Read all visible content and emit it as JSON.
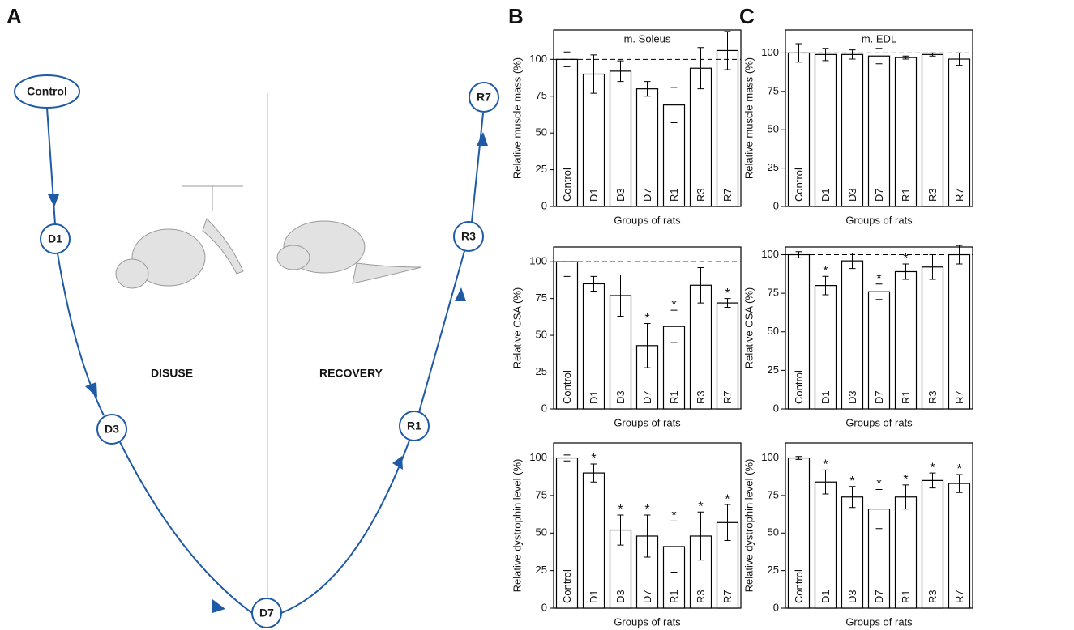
{
  "panel_labels": [
    "A",
    "B",
    "C"
  ],
  "diagram": {
    "nodes": [
      {
        "label": "Control"
      },
      {
        "label": "D1"
      },
      {
        "label": "D3"
      },
      {
        "label": "D7"
      },
      {
        "label": "R1"
      },
      {
        "label": "R3"
      },
      {
        "label": "R7"
      }
    ],
    "phases": [
      "DISUSE",
      "RECOVERY"
    ]
  },
  "chart_data": [
    {
      "type": "bar",
      "title": "m. Soleus",
      "ylabel": "Relative muscle mass (%)",
      "xlabel": "Groups of rats",
      "categories": [
        "Control",
        "D1",
        "D3",
        "D7",
        "R1",
        "R3",
        "R7"
      ],
      "values": [
        100,
        90,
        92,
        80,
        69,
        94,
        106
      ],
      "errors": [
        5,
        13,
        7,
        5,
        12,
        14,
        13
      ],
      "significance": [
        null,
        null,
        null,
        null,
        null,
        null,
        null
      ],
      "reference_line": 100,
      "color": "#ffffff",
      "ylim": [
        0,
        120
      ],
      "yticks": [
        0,
        25,
        50,
        75,
        100
      ]
    },
    {
      "type": "bar",
      "ylabel": "Relative CSA (%)",
      "xlabel": "Groups of rats",
      "categories": [
        "Control",
        "D1",
        "D3",
        "D7",
        "R1",
        "R3",
        "R7"
      ],
      "values": [
        100,
        85,
        77,
        43,
        56,
        84,
        72
      ],
      "errors": [
        10,
        5,
        14,
        15,
        11,
        12,
        3
      ],
      "significance": [
        null,
        null,
        null,
        "*",
        "*",
        null,
        "*"
      ],
      "reference_line": 100,
      "color": "#ffffff",
      "ylim": [
        0,
        110
      ],
      "yticks": [
        0,
        25,
        50,
        75,
        100
      ]
    },
    {
      "type": "bar",
      "ylabel": "Relative dystrophin level (%)",
      "xlabel": "Groups of rats",
      "categories": [
        "Control",
        "D1",
        "D3",
        "D7",
        "R1",
        "R3",
        "R7"
      ],
      "values": [
        100,
        90,
        52,
        48,
        41,
        48,
        57
      ],
      "errors": [
        2,
        6,
        10,
        14,
        17,
        16,
        12
      ],
      "significance": [
        null,
        "*",
        "*",
        "*",
        "*",
        "*",
        "*"
      ],
      "reference_line": 100,
      "color": "#ffffff",
      "ylim": [
        0,
        110
      ],
      "yticks": [
        0,
        25,
        50,
        75,
        100
      ]
    },
    {
      "type": "bar",
      "title": "m. EDL",
      "ylabel": "Relative muscle mass (%)",
      "xlabel": "Groups of rats",
      "categories": [
        "Control",
        "D1",
        "D3",
        "D7",
        "R1",
        "R3",
        "R7"
      ],
      "values": [
        100,
        99,
        99,
        98,
        97,
        99,
        96
      ],
      "errors": [
        6,
        4,
        3,
        5,
        1,
        1,
        4
      ],
      "significance": [
        null,
        null,
        null,
        null,
        null,
        null,
        null
      ],
      "reference_line": 100,
      "color": "#ffffff",
      "ylim": [
        0,
        115
      ],
      "yticks": [
        0,
        25,
        50,
        75,
        100
      ]
    },
    {
      "type": "bar",
      "ylabel": "Relative CSA (%)",
      "xlabel": "Groups of rats",
      "categories": [
        "Control",
        "D1",
        "D3",
        "D7",
        "R1",
        "R3",
        "R7"
      ],
      "values": [
        100,
        80,
        96,
        76,
        89,
        92,
        100
      ],
      "errors": [
        2,
        6,
        5,
        5,
        5,
        8,
        6
      ],
      "significance": [
        null,
        "*",
        null,
        "*",
        "*",
        null,
        null
      ],
      "reference_line": 100,
      "color": "#ffffff",
      "ylim": [
        0,
        105
      ],
      "yticks": [
        0,
        25,
        50,
        75,
        100
      ]
    },
    {
      "type": "bar",
      "ylabel": "Relative dystrophin level (%)",
      "xlabel": "Groups of rats",
      "categories": [
        "Control",
        "D1",
        "D3",
        "D7",
        "R1",
        "R3",
        "R7"
      ],
      "values": [
        100,
        84,
        74,
        66,
        74,
        85,
        83
      ],
      "errors": [
        1,
        8,
        7,
        13,
        8,
        5,
        6
      ],
      "significance": [
        null,
        "*",
        "*",
        "*",
        "*",
        "*",
        "*"
      ],
      "reference_line": 100,
      "color": "#ffffff",
      "ylim": [
        0,
        110
      ],
      "yticks": [
        0,
        25,
        50,
        75,
        100
      ]
    }
  ]
}
